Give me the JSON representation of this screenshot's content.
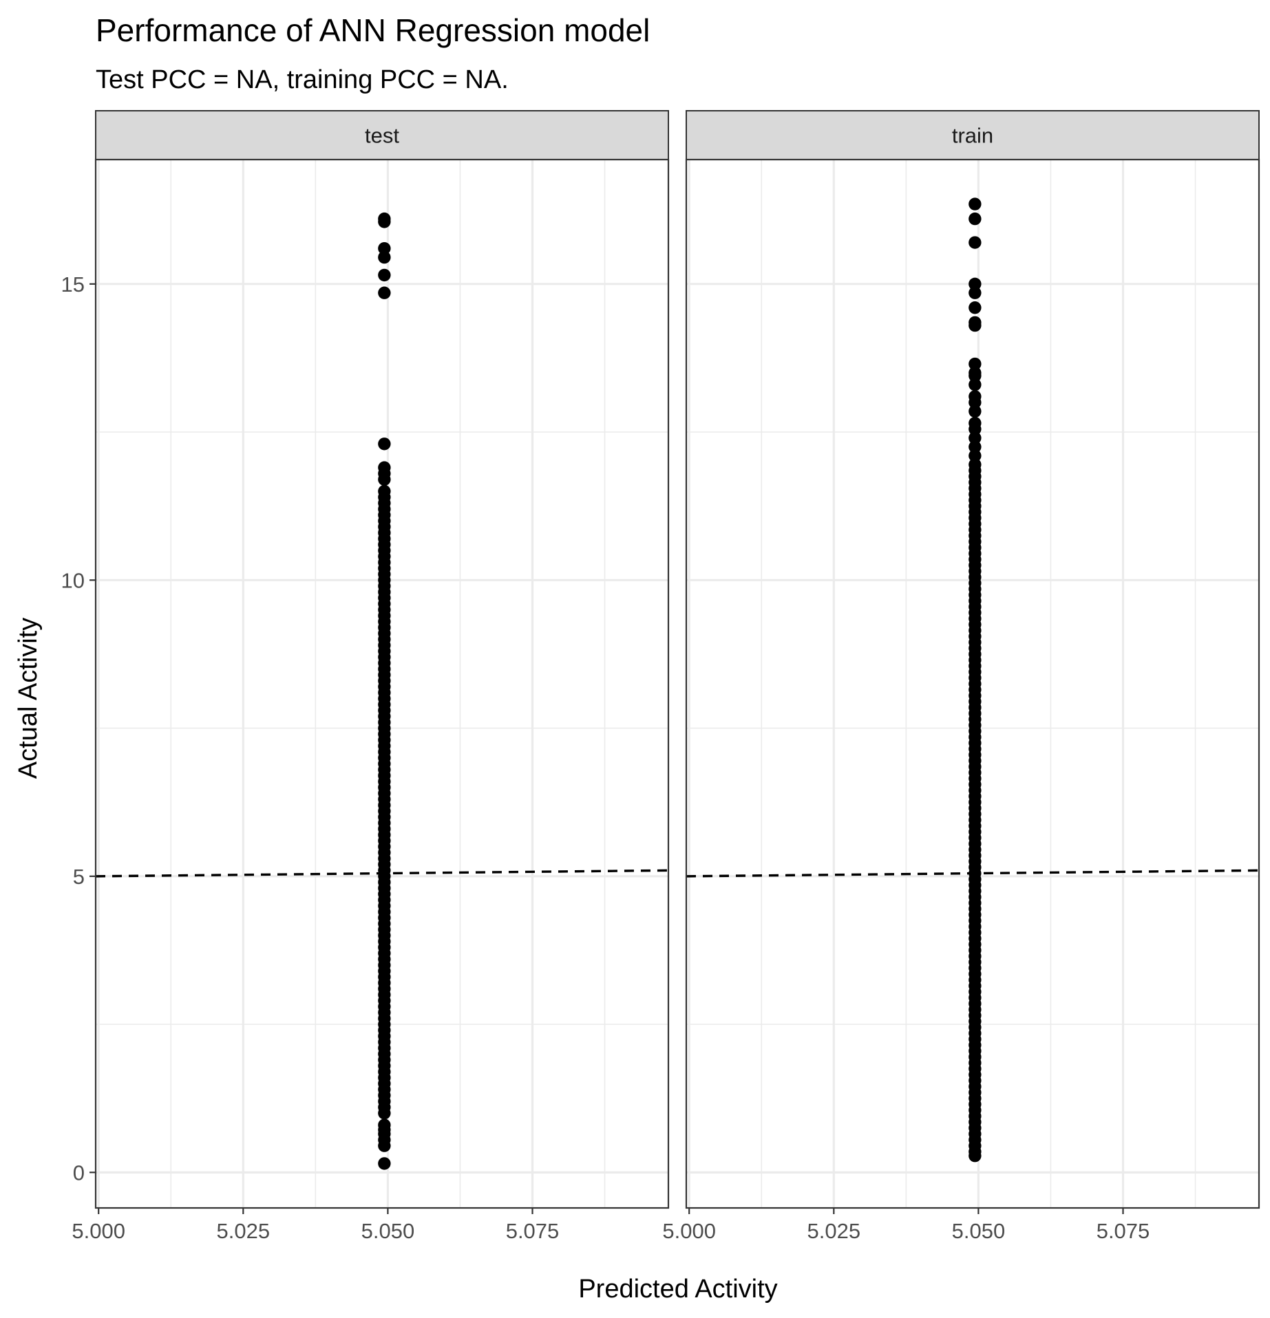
{
  "chart_data": {
    "type": "scatter",
    "title": "Performance of ANN Regression model",
    "subtitle": "Test PCC = NA, training PCC = NA.",
    "xlabel": "Predicted Activity",
    "ylabel": "Actual Activity",
    "xlim": [
      4.9995,
      5.0985
    ],
    "ylim": [
      -0.6,
      17.1
    ],
    "x_ticks": [
      5.0,
      5.025,
      5.05,
      5.075
    ],
    "x_tick_labels": [
      "5.000",
      "5.025",
      "5.050",
      "5.075"
    ],
    "x_minor_ticks": [
      5.0125,
      5.0375,
      5.0625,
      5.0875
    ],
    "y_ticks": [
      0,
      5,
      10,
      15
    ],
    "y_tick_labels": [
      "0",
      "5",
      "10",
      "15"
    ],
    "y_minor_ticks": [
      2.5,
      7.5,
      12.5
    ],
    "grid": true,
    "reference_line": {
      "style": "dashed",
      "color": "#000000",
      "x": [
        4.9995,
        5.0985
      ],
      "y": [
        4.9995,
        5.0985
      ]
    },
    "panels": [
      {
        "name": "test",
        "x": 5.0494,
        "y": [
          0.15,
          0.45,
          0.55,
          0.65,
          0.72,
          0.8,
          1.0,
          1.1,
          1.2,
          1.3,
          1.4,
          1.5,
          1.6,
          1.7,
          1.8,
          1.9,
          2.0,
          2.1,
          2.2,
          2.3,
          2.4,
          2.5,
          2.6,
          2.7,
          2.8,
          2.9,
          3.0,
          3.1,
          3.2,
          3.3,
          3.4,
          3.5,
          3.6,
          3.7,
          3.8,
          3.9,
          4.0,
          4.1,
          4.2,
          4.3,
          4.4,
          4.5,
          4.6,
          4.7,
          4.8,
          4.9,
          5.0,
          5.1,
          5.2,
          5.3,
          5.4,
          5.5,
          5.6,
          5.7,
          5.8,
          5.9,
          6.0,
          6.1,
          6.2,
          6.3,
          6.4,
          6.5,
          6.6,
          6.7,
          6.8,
          6.9,
          7.0,
          7.1,
          7.2,
          7.3,
          7.4,
          7.5,
          7.6,
          7.7,
          7.8,
          7.9,
          8.0,
          8.1,
          8.2,
          8.3,
          8.4,
          8.5,
          8.6,
          8.7,
          8.8,
          8.9,
          9.0,
          9.1,
          9.2,
          9.3,
          9.4,
          9.5,
          9.6,
          9.7,
          9.8,
          9.9,
          10.0,
          10.1,
          10.2,
          10.3,
          10.4,
          10.5,
          10.6,
          10.7,
          10.8,
          10.9,
          11.0,
          11.1,
          11.2,
          11.3,
          11.4,
          11.5,
          11.7,
          11.8,
          11.9,
          12.3,
          14.85,
          15.15,
          15.45,
          15.6,
          16.05,
          16.1
        ]
      },
      {
        "name": "train",
        "x": 5.0494,
        "y": [
          0.28,
          0.35,
          0.45,
          0.55,
          0.65,
          0.75,
          0.85,
          0.95,
          1.05,
          1.15,
          1.25,
          1.35,
          1.45,
          1.55,
          1.65,
          1.75,
          1.85,
          1.95,
          2.05,
          2.15,
          2.25,
          2.35,
          2.45,
          2.55,
          2.65,
          2.75,
          2.85,
          2.95,
          3.05,
          3.15,
          3.25,
          3.35,
          3.45,
          3.55,
          3.65,
          3.75,
          3.85,
          3.95,
          4.05,
          4.15,
          4.25,
          4.35,
          4.45,
          4.55,
          4.65,
          4.75,
          4.85,
          4.95,
          5.05,
          5.15,
          5.25,
          5.35,
          5.45,
          5.55,
          5.65,
          5.75,
          5.85,
          5.95,
          6.05,
          6.15,
          6.25,
          6.35,
          6.45,
          6.55,
          6.65,
          6.75,
          6.85,
          6.95,
          7.05,
          7.15,
          7.25,
          7.35,
          7.45,
          7.55,
          7.65,
          7.75,
          7.85,
          7.95,
          8.05,
          8.15,
          8.25,
          8.35,
          8.45,
          8.55,
          8.65,
          8.75,
          8.85,
          8.95,
          9.05,
          9.15,
          9.25,
          9.35,
          9.45,
          9.55,
          9.65,
          9.75,
          9.85,
          9.95,
          10.05,
          10.15,
          10.25,
          10.35,
          10.45,
          10.55,
          10.65,
          10.75,
          10.85,
          10.95,
          11.05,
          11.15,
          11.25,
          11.35,
          11.45,
          11.55,
          11.65,
          11.75,
          11.85,
          11.95,
          12.1,
          12.25,
          12.4,
          12.55,
          12.65,
          12.85,
          13.0,
          13.1,
          13.3,
          13.45,
          13.5,
          13.65,
          14.3,
          14.35,
          14.6,
          14.85,
          15.0,
          15.7,
          16.1,
          16.35
        ]
      }
    ]
  }
}
